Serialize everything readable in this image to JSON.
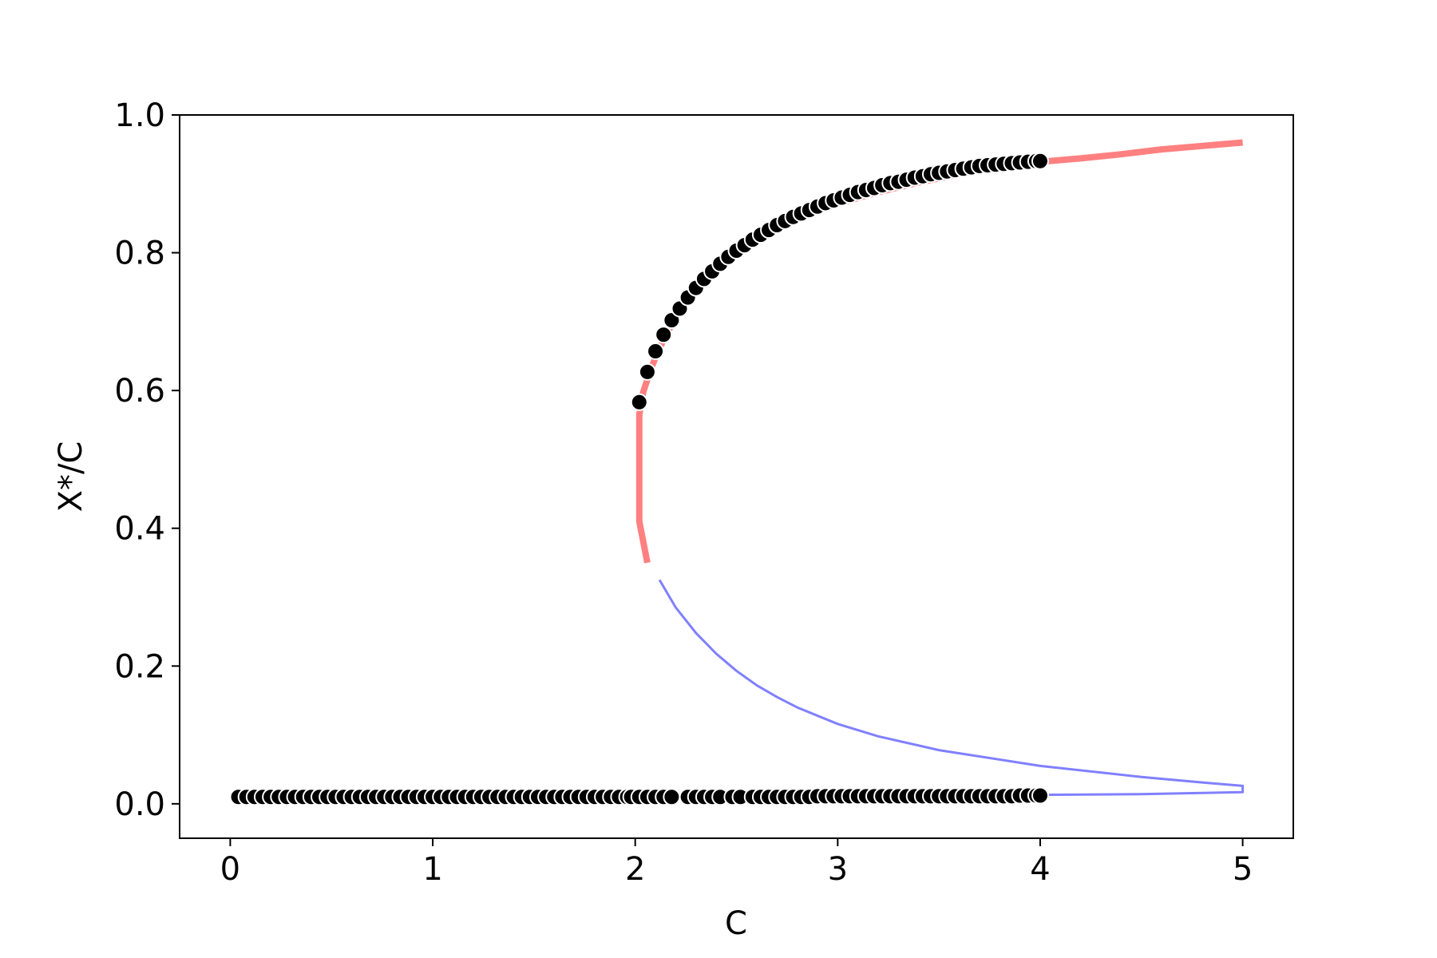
{
  "chart_data": {
    "type": "line",
    "title": "",
    "xlabel": "C",
    "ylabel": "X*/C",
    "xlim": [
      -0.25,
      5.25
    ],
    "ylim": [
      -0.05,
      1.0
    ],
    "grid": false,
    "x_ticks": [
      {
        "value": 0,
        "label": "0"
      },
      {
        "value": 1,
        "label": "1"
      },
      {
        "value": 2,
        "label": "2"
      },
      {
        "value": 3,
        "label": "3"
      },
      {
        "value": 4,
        "label": "4"
      },
      {
        "value": 5,
        "label": "5"
      }
    ],
    "y_ticks": [
      {
        "value": 0.0,
        "label": "0.0"
      },
      {
        "value": 0.2,
        "label": "0.2"
      },
      {
        "value": 0.4,
        "label": "0.4"
      },
      {
        "value": 0.6,
        "label": "0.6"
      },
      {
        "value": 0.8,
        "label": "0.8"
      },
      {
        "value": 1.0,
        "label": "1.0"
      }
    ],
    "series": [
      {
        "style": "thick-line",
        "color": "#ff8080",
        "x": [
          5.0,
          4.8,
          4.6,
          4.4,
          4.2,
          4.0,
          3.8,
          3.6,
          3.4,
          3.2,
          3.0,
          2.8,
          2.6,
          2.5,
          2.4,
          2.3,
          2.2,
          2.15,
          2.1,
          2.07,
          2.04,
          2.02,
          2.02,
          2.02,
          2.06
        ],
        "y": [
          0.96,
          0.955,
          0.95,
          0.943,
          0.937,
          0.932,
          0.924,
          0.914,
          0.902,
          0.888,
          0.871,
          0.849,
          0.818,
          0.798,
          0.774,
          0.745,
          0.705,
          0.68,
          0.648,
          0.625,
          0.598,
          0.565,
          0.48,
          0.41,
          0.35
        ]
      },
      {
        "style": "thin-line",
        "color": "#8080ff",
        "x": [
          2.12,
          2.2,
          2.3,
          2.4,
          2.5,
          2.6,
          2.7,
          2.8,
          3.0,
          3.2,
          3.5,
          4.0,
          4.5,
          4.8,
          5.0,
          5.0,
          4.5,
          4.0,
          3.0,
          2.0,
          1.0,
          0.05
        ],
        "y": [
          0.325,
          0.285,
          0.248,
          0.218,
          0.193,
          0.172,
          0.155,
          0.14,
          0.116,
          0.098,
          0.078,
          0.055,
          0.039,
          0.031,
          0.026,
          0.017,
          0.014,
          0.013,
          0.012,
          0.011,
          0.01,
          0.01
        ]
      },
      {
        "style": "markers",
        "color": "#000000",
        "x": [
          2.02,
          2.06,
          2.1,
          2.14,
          2.18,
          2.22,
          2.26,
          2.3,
          2.34,
          2.38,
          2.42,
          2.46,
          2.5,
          2.54,
          2.58,
          2.62,
          2.66,
          2.7,
          2.74,
          2.78,
          2.82,
          2.86,
          2.9,
          2.94,
          2.98,
          3.02,
          3.06,
          3.1,
          3.14,
          3.18,
          3.22,
          3.26,
          3.3,
          3.34,
          3.38,
          3.42,
          3.46,
          3.5,
          3.54,
          3.58,
          3.62,
          3.66,
          3.7,
          3.74,
          3.78,
          3.82,
          3.86,
          3.9,
          3.94,
          3.98,
          4.0
        ],
        "y": [
          0.583,
          0.627,
          0.657,
          0.681,
          0.702,
          0.719,
          0.735,
          0.749,
          0.762,
          0.773,
          0.784,
          0.794,
          0.803,
          0.811,
          0.819,
          0.826,
          0.833,
          0.84,
          0.846,
          0.852,
          0.857,
          0.862,
          0.867,
          0.872,
          0.876,
          0.88,
          0.884,
          0.888,
          0.891,
          0.894,
          0.898,
          0.901,
          0.903,
          0.906,
          0.909,
          0.911,
          0.914,
          0.916,
          0.918,
          0.92,
          0.922,
          0.924,
          0.926,
          0.927,
          0.928,
          0.929,
          0.93,
          0.931,
          0.932,
          0.933,
          0.933
        ]
      },
      {
        "style": "markers",
        "color": "#000000",
        "x": [
          0.04,
          0.08,
          0.12,
          0.16,
          0.2,
          0.24,
          0.28,
          0.32,
          0.36,
          0.4,
          0.44,
          0.48,
          0.52,
          0.56,
          0.6,
          0.64,
          0.68,
          0.72,
          0.76,
          0.8,
          0.84,
          0.88,
          0.92,
          0.96,
          1.0,
          1.04,
          1.08,
          1.12,
          1.16,
          1.2,
          1.24,
          1.28,
          1.32,
          1.36,
          1.4,
          1.44,
          1.48,
          1.52,
          1.56,
          1.6,
          1.64,
          1.68,
          1.72,
          1.76,
          1.8,
          1.84,
          1.88,
          1.92,
          1.96,
          1.98,
          2.02,
          2.06,
          2.1,
          2.14,
          2.18,
          2.26,
          2.3,
          2.34,
          2.38,
          2.42,
          2.48,
          2.52,
          2.58,
          2.62,
          2.66,
          2.7,
          2.74,
          2.78,
          2.82,
          2.86,
          2.9,
          2.94,
          2.98,
          3.02,
          3.06,
          3.1,
          3.14,
          3.18,
          3.22,
          3.26,
          3.3,
          3.34,
          3.38,
          3.42,
          3.46,
          3.5,
          3.54,
          3.58,
          3.62,
          3.66,
          3.7,
          3.74,
          3.78,
          3.82,
          3.86,
          3.9,
          3.94,
          3.98,
          4.0
        ],
        "y": [
          0.01,
          0.01,
          0.01,
          0.01,
          0.01,
          0.01,
          0.01,
          0.01,
          0.01,
          0.01,
          0.01,
          0.01,
          0.01,
          0.01,
          0.01,
          0.01,
          0.01,
          0.01,
          0.01,
          0.01,
          0.01,
          0.01,
          0.01,
          0.01,
          0.01,
          0.01,
          0.01,
          0.01,
          0.01,
          0.01,
          0.01,
          0.01,
          0.01,
          0.01,
          0.01,
          0.01,
          0.01,
          0.01,
          0.01,
          0.01,
          0.01,
          0.01,
          0.01,
          0.01,
          0.01,
          0.01,
          0.01,
          0.01,
          0.01,
          0.01,
          0.01,
          0.01,
          0.01,
          0.01,
          0.01,
          0.01,
          0.01,
          0.01,
          0.01,
          0.01,
          0.01,
          0.01,
          0.01,
          0.01,
          0.01,
          0.01,
          0.01,
          0.01,
          0.01,
          0.01,
          0.011,
          0.011,
          0.011,
          0.011,
          0.011,
          0.011,
          0.011,
          0.011,
          0.011,
          0.011,
          0.011,
          0.011,
          0.011,
          0.011,
          0.011,
          0.011,
          0.011,
          0.011,
          0.011,
          0.011,
          0.011,
          0.011,
          0.011,
          0.011,
          0.011,
          0.012,
          0.012,
          0.012,
          0.012
        ]
      }
    ]
  }
}
